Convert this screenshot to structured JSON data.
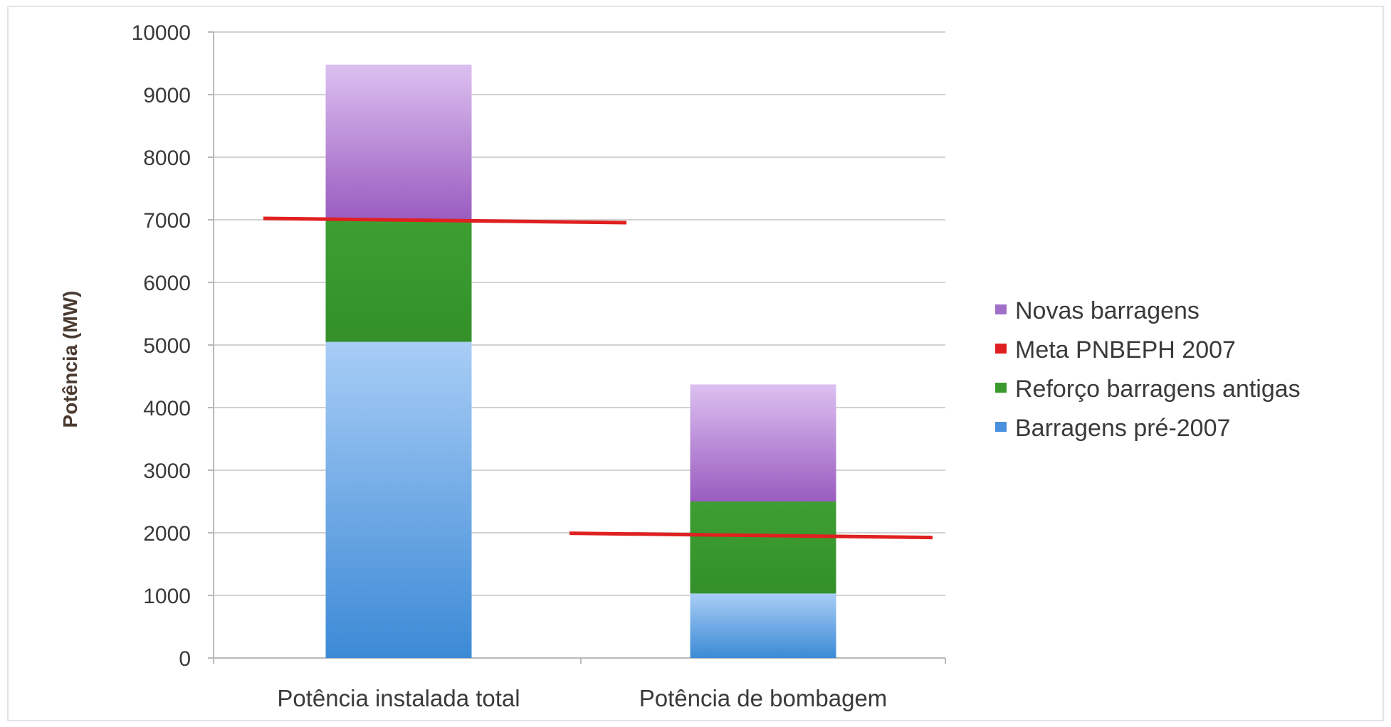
{
  "chart_data": {
    "type": "bar",
    "stacked": true,
    "categories": [
      "Potência instalada total",
      "Potência de bombagem"
    ],
    "ylabel": "Potência (MW)",
    "xlabel": "",
    "ylim": [
      0,
      10000
    ],
    "yticks": [
      0,
      1000,
      2000,
      3000,
      4000,
      5000,
      6000,
      7000,
      8000,
      9000,
      10000
    ],
    "grid": true,
    "legend_position": "right",
    "series": [
      {
        "name": "Barragens pré-2007",
        "values": [
          5050,
          1030
        ],
        "color": "#4a90dc"
      },
      {
        "name": "Reforço barragens antigas",
        "values": [
          1950,
          1470
        ],
        "color": "#3a9a2e"
      },
      {
        "name": "Novas barragens",
        "values": [
          2480,
          1870
        ],
        "color": "#a070c8"
      }
    ],
    "target_line": {
      "name": "Meta PNBEPH 2007",
      "values": [
        7000,
        1970
      ],
      "color": "#e02020"
    },
    "legend_order": [
      "Novas barragens",
      "Meta PNBEPH 2007",
      "Reforço barragens antigas",
      "Barragens pré-2007"
    ]
  }
}
